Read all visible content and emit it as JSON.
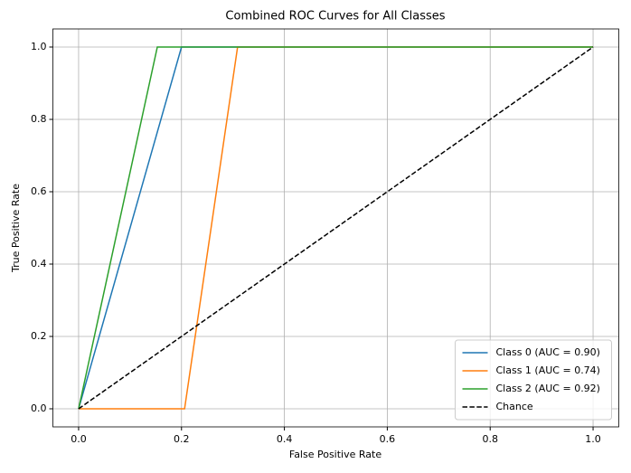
{
  "chart_data": {
    "type": "line",
    "title": "Combined ROC Curves for All Classes",
    "x_label": "False Positive Rate",
    "y_label": "True Positive Rate",
    "xlim": [
      -0.05,
      1.05
    ],
    "ylim": [
      -0.05,
      1.05
    ],
    "xticks": [
      {
        "value": 0,
        "label": "0.0"
      },
      0.2,
      0.4,
      0.6,
      0.8,
      {
        "value": 1,
        "label": "1.0"
      }
    ],
    "yticks": [
      {
        "value": 0,
        "label": "0.0"
      },
      0.2,
      0.4,
      0.6,
      0.8,
      {
        "value": 1,
        "label": "1.0"
      }
    ],
    "grid": true,
    "legend_position": "lower right",
    "series": [
      {
        "name": "Class 0 (AUC = 0.90)",
        "color": "#1f77b4",
        "style": "solid",
        "x": [
          0,
          0.2,
          1
        ],
        "values": [
          0,
          1,
          1
        ]
      },
      {
        "name": "Class 1 (AUC = 0.74)",
        "color": "#ff7f0e",
        "style": "solid",
        "x": [
          0,
          0.206,
          0.309,
          1
        ],
        "values": [
          0,
          0,
          1,
          1
        ]
      },
      {
        "name": "Class 2 (AUC = 0.92)",
        "color": "#2ca02c",
        "style": "solid",
        "x": [
          0,
          0.153,
          1
        ],
        "values": [
          0,
          1,
          1
        ]
      },
      {
        "name": "Chance",
        "color": "#000000",
        "style": "dashed",
        "x": [
          0,
          1
        ],
        "values": [
          0,
          1
        ]
      }
    ]
  }
}
